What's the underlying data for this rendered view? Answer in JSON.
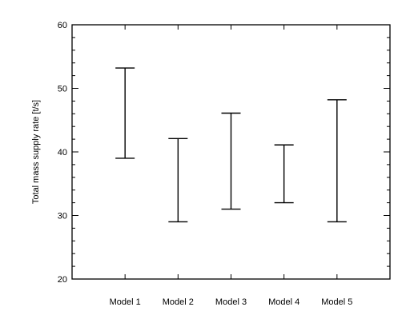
{
  "chart_data": {
    "type": "range",
    "ylabel": "Total mass supply rate [t/s]",
    "ylim": [
      20,
      60
    ],
    "yticks": [
      20,
      30,
      40,
      50,
      60
    ],
    "categories": [
      "Model 1",
      "Model 2",
      "Model 3",
      "Model 4",
      "Model 5"
    ],
    "ranges": [
      {
        "low": 39,
        "high": 53.2
      },
      {
        "low": 29,
        "high": 42.1
      },
      {
        "low": 31,
        "high": 46.1
      },
      {
        "low": 32,
        "high": 41.1
      },
      {
        "low": 29,
        "high": 48.2
      }
    ],
    "grid": false,
    "legend": "none"
  }
}
